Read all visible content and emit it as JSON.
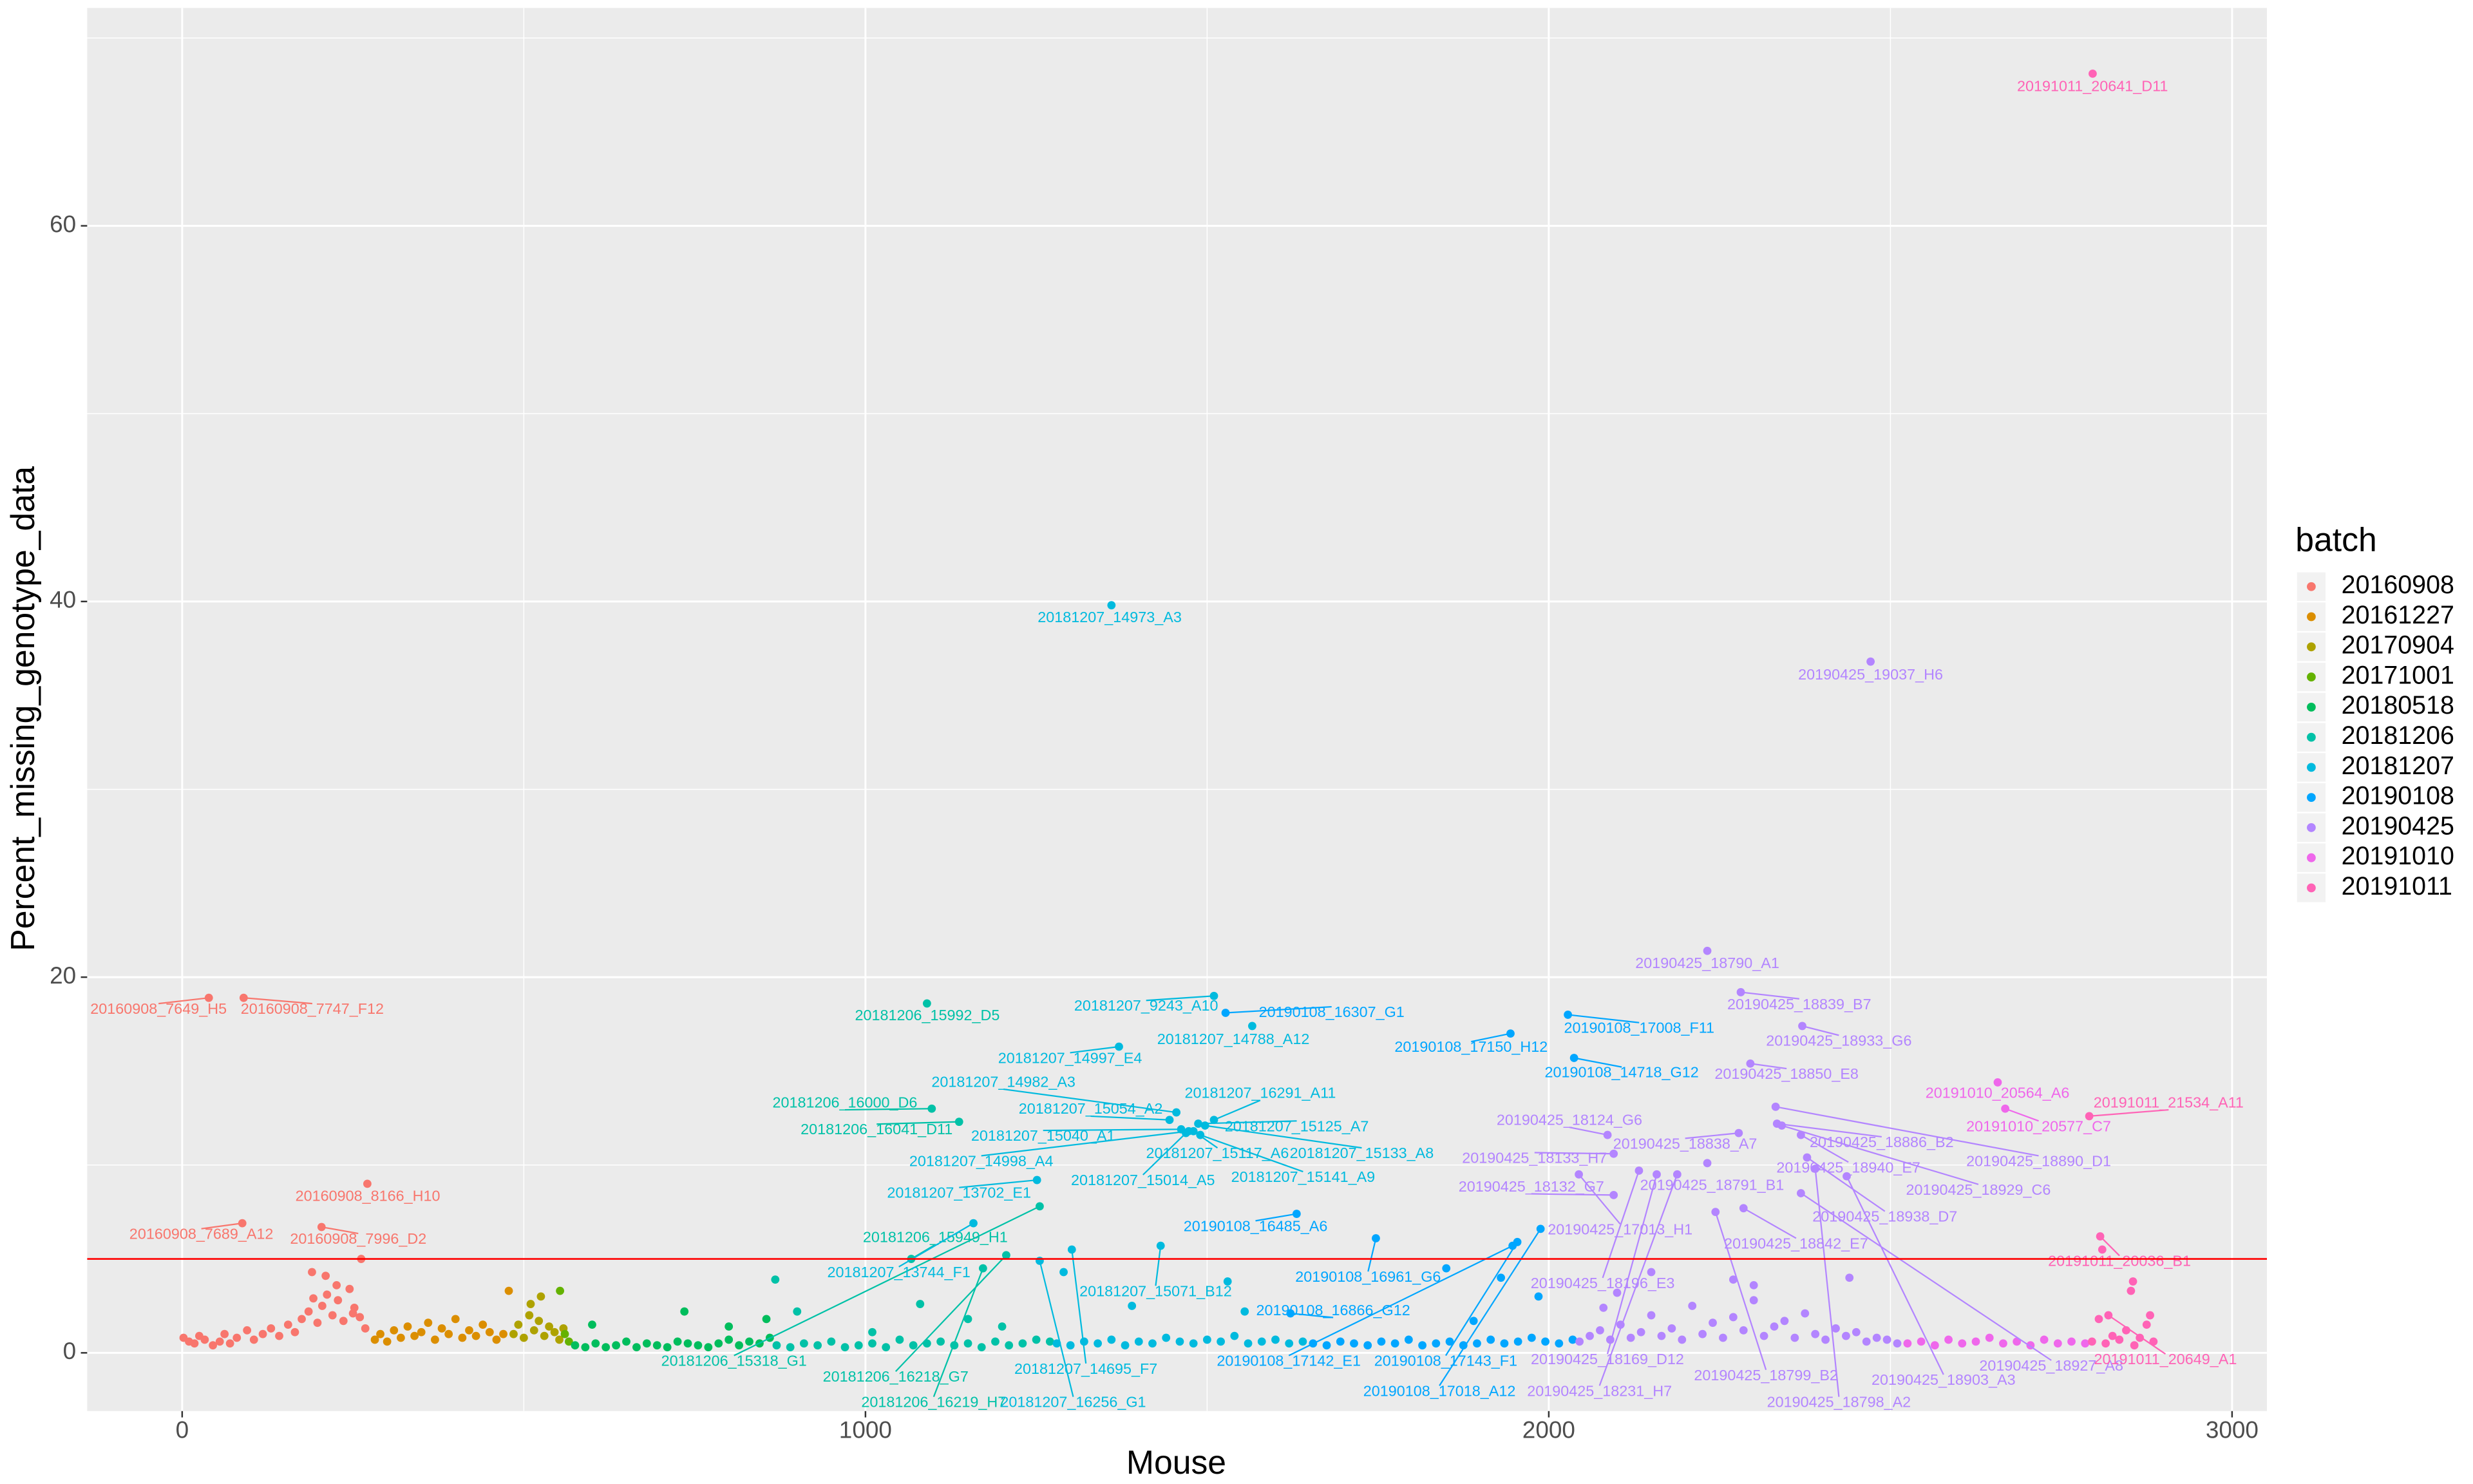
{
  "chart_data": {
    "type": "scatter",
    "x_label": "Mouse",
    "y_label": "Percent_missing_genotype_data",
    "legend_title": "batch",
    "xlim": [
      -139,
      3051
    ],
    "ylim": [
      -3.1,
      71.6
    ],
    "xticks": [
      0,
      1000,
      2000,
      3000
    ],
    "yticks": [
      0,
      20,
      40,
      60
    ],
    "x_minor_ticks": [
      500,
      1500,
      2500
    ],
    "y_minor_ticks": [
      10,
      30,
      50,
      70
    ],
    "grid": true,
    "legend_position": "right",
    "hline": 5,
    "hline_color": "#ff0000",
    "series": [
      {
        "name": "20160908",
        "color": "#F8766D",
        "x": [
          2,
          10,
          18,
          25,
          33,
          45,
          55,
          62,
          70,
          80,
          95,
          105,
          118,
          130,
          142,
          155,
          165,
          175,
          185,
          192,
          198,
          205,
          212,
          220,
          228,
          236,
          245,
          252,
          260,
          268,
          190,
          210,
          226,
          250,
          262
        ],
        "y": [
          0.8,
          0.6,
          0.5,
          0.9,
          0.7,
          0.4,
          0.6,
          1.0,
          0.5,
          0.8,
          1.2,
          0.7,
          1.0,
          1.3,
          0.9,
          1.5,
          1.1,
          1.8,
          2.2,
          2.9,
          1.6,
          2.5,
          3.1,
          2.0,
          2.8,
          1.7,
          3.4,
          2.4,
          1.9,
          1.3,
          4.3,
          4.1,
          3.6,
          2.1,
          5.0
        ],
        "labels": [
          {
            "text": "20160908_7649_H5",
            "x": 39,
            "y": 18.9
          },
          {
            "text": "20160908_7747_F12",
            "x": 90,
            "y": 18.9
          },
          {
            "text": "20160908_8166_H10",
            "x": 271,
            "y": 9.0
          },
          {
            "text": "20160908_7689_A12",
            "x": 88,
            "y": 6.9
          },
          {
            "text": "20160908_7996_D2",
            "x": 204,
            "y": 6.7
          }
        ]
      },
      {
        "name": "20161227",
        "color": "#DB8E00",
        "x": [
          282,
          290,
          300,
          310,
          320,
          330,
          340,
          350,
          360,
          370,
          380,
          390,
          400,
          410,
          420,
          430,
          440,
          450,
          460,
          470,
          478
        ],
        "y": [
          0.7,
          1.0,
          0.6,
          1.2,
          0.8,
          1.4,
          0.9,
          1.1,
          1.6,
          0.7,
          1.3,
          1.0,
          1.8,
          0.8,
          1.2,
          0.9,
          1.5,
          1.1,
          0.7,
          1.0,
          3.3
        ]
      },
      {
        "name": "20170904",
        "color": "#AEA200",
        "x": [
          485,
          492,
          500,
          508,
          515,
          522,
          530,
          537,
          545,
          552,
          558,
          510,
          525
        ],
        "y": [
          1.0,
          1.5,
          0.8,
          2.0,
          1.2,
          1.7,
          0.9,
          1.4,
          1.1,
          0.7,
          1.3,
          2.6,
          3.0
        ]
      },
      {
        "name": "20171001",
        "color": "#64B200",
        "x": [
          553,
          560,
          566
        ],
        "y": [
          3.3,
          1.0,
          0.6
        ]
      },
      {
        "name": "20180518",
        "color": "#00BD5C",
        "x": [
          575,
          590,
          605,
          620,
          635,
          650,
          665,
          680,
          695,
          710,
          725,
          740,
          755,
          770,
          785,
          800,
          815,
          830,
          845,
          860,
          600,
          735,
          800,
          855
        ],
        "y": [
          0.4,
          0.3,
          0.5,
          0.3,
          0.4,
          0.6,
          0.3,
          0.5,
          0.4,
          0.3,
          0.6,
          0.5,
          0.4,
          0.3,
          0.5,
          0.7,
          0.4,
          0.6,
          0.5,
          0.8,
          1.5,
          2.2,
          1.4,
          1.8
        ]
      },
      {
        "name": "20181206",
        "color": "#00C1A7",
        "x": [
          870,
          890,
          910,
          930,
          950,
          970,
          990,
          1010,
          1030,
          1050,
          1070,
          1090,
          1110,
          1130,
          1150,
          1170,
          1190,
          1210,
          1230,
          1250,
          1270,
          868,
          900,
          1010,
          1080,
          1150,
          1200
        ],
        "y": [
          0.4,
          0.3,
          0.5,
          0.4,
          0.6,
          0.3,
          0.4,
          0.5,
          0.3,
          0.7,
          0.4,
          0.5,
          0.6,
          0.4,
          0.5,
          0.3,
          0.6,
          0.4,
          0.5,
          0.7,
          0.6,
          3.9,
          2.2,
          1.1,
          2.6,
          1.8,
          1.4
        ],
        "labels": [
          {
            "text": "20181206_15992_D5",
            "x": 1090,
            "y": 18.6
          },
          {
            "text": "20181206_16000_D6",
            "x": 1097,
            "y": 13.0
          },
          {
            "text": "20181206_16041_D11",
            "x": 1137,
            "y": 12.3
          },
          {
            "text": "20181206_15949_H1",
            "x": 1067,
            "y": 5.0
          },
          {
            "text": "20181206_15318_G1",
            "x": 1255,
            "y": 7.8
          },
          {
            "text": "20181206_16218_G7",
            "x": 1206,
            "y": 5.2
          },
          {
            "text": "20181206_16219_H7",
            "x": 1172,
            "y": 4.5
          }
        ]
      },
      {
        "name": "20181207",
        "color": "#00BADE",
        "x": [
          1280,
          1300,
          1320,
          1340,
          1360,
          1380,
          1400,
          1420,
          1440,
          1460,
          1480,
          1500,
          1520,
          1540,
          1560,
          1580,
          1600,
          1620,
          1640,
          1290,
          1390,
          1530,
          1555
        ],
        "y": [
          0.5,
          0.4,
          0.6,
          0.5,
          0.7,
          0.4,
          0.6,
          0.5,
          0.8,
          0.6,
          0.5,
          0.7,
          0.6,
          0.9,
          0.5,
          0.6,
          0.7,
          0.5,
          0.6,
          4.3,
          2.5,
          3.8,
          2.2
        ],
        "labels": [
          {
            "text": "20181207_9243_A10",
            "x": 1510,
            "y": 19.0
          },
          {
            "text": "20181207_14788_A12",
            "x": 1566,
            "y": 17.4
          },
          {
            "text": "20181207_14997_E4",
            "x": 1371,
            "y": 16.3
          },
          {
            "text": "20181207_14973_A3",
            "x": 1360,
            "y": 39.8
          },
          {
            "text": "20181207_14982_A3",
            "x": 1455,
            "y": 12.8
          },
          {
            "text": "20181207_16291_A11",
            "x": 1510,
            "y": 12.4
          },
          {
            "text": "20181207_15054_A2",
            "x": 1445,
            "y": 12.4
          },
          {
            "text": "20181207_15125_A7",
            "x": 1487,
            "y": 12.2
          },
          {
            "text": "20181207_15040_A1",
            "x": 1462,
            "y": 11.9
          },
          {
            "text": "20181207_15133_A8",
            "x": 1497,
            "y": 12.1
          },
          {
            "text": "20181207_14998_A4",
            "x": 1473,
            "y": 11.8
          },
          {
            "text": "20181207_15117_A6",
            "x": 1480,
            "y": 11.8
          },
          {
            "text": "20181207_15014_A5",
            "x": 1469,
            "y": 11.7
          },
          {
            "text": "20181207_15141_A9",
            "x": 1490,
            "y": 11.6
          },
          {
            "text": "20181207_13702_E1",
            "x": 1251,
            "y": 9.2
          },
          {
            "text": "20181207_13744_F1",
            "x": 1158,
            "y": 6.9
          },
          {
            "text": "20181207_15071_B12",
            "x": 1432,
            "y": 5.7
          },
          {
            "text": "20181207_16256_G1",
            "x": 1255,
            "y": 4.9
          },
          {
            "text": "20181207_14695_F7",
            "x": 1302,
            "y": 5.5
          }
        ]
      },
      {
        "name": "20190108",
        "color": "#00A6FF",
        "x": [
          1655,
          1675,
          1695,
          1715,
          1735,
          1755,
          1775,
          1795,
          1815,
          1835,
          1855,
          1875,
          1895,
          1915,
          1935,
          1955,
          1975,
          1995,
          2015,
          2035,
          1850,
          1930,
          1985,
          1890
        ],
        "y": [
          0.5,
          0.4,
          0.6,
          0.5,
          0.4,
          0.6,
          0.5,
          0.7,
          0.4,
          0.5,
          0.6,
          0.4,
          0.5,
          0.7,
          0.5,
          0.6,
          0.8,
          0.6,
          0.5,
          0.7,
          4.5,
          4.0,
          3.0,
          1.7
        ],
        "labels": [
          {
            "text": "20190108_16307_G1",
            "x": 1527,
            "y": 18.1
          },
          {
            "text": "20190108_17150_H12",
            "x": 1944,
            "y": 17.0
          },
          {
            "text": "20190108_17008_F11",
            "x": 2028,
            "y": 18.0
          },
          {
            "text": "20190108_14718_G12",
            "x": 2037,
            "y": 15.7
          },
          {
            "text": "20190108_16485_A6",
            "x": 1631,
            "y": 7.4
          },
          {
            "text": "20190108_16961_G6",
            "x": 1747,
            "y": 6.1
          },
          {
            "text": "20190108_16866_G12",
            "x": 1622,
            "y": 2.1
          },
          {
            "text": "20190108_17142_E1",
            "x": 1947,
            "y": 5.7
          },
          {
            "text": "20190108_17143_F1",
            "x": 1954,
            "y": 5.9
          },
          {
            "text": "20190108_17018_A12",
            "x": 1988,
            "y": 6.6
          }
        ]
      },
      {
        "name": "20190425",
        "color": "#B385FF",
        "x": [
          2045,
          2060,
          2075,
          2090,
          2105,
          2120,
          2135,
          2150,
          2165,
          2180,
          2195,
          2210,
          2225,
          2240,
          2255,
          2270,
          2285,
          2300,
          2315,
          2330,
          2345,
          2360,
          2375,
          2390,
          2405,
          2420,
          2435,
          2450,
          2465,
          2480,
          2495,
          2510,
          2100,
          2150,
          2270,
          2300,
          2440,
          2080
        ],
        "y": [
          0.6,
          0.9,
          1.2,
          0.7,
          1.5,
          0.8,
          1.1,
          2.0,
          0.9,
          1.3,
          0.7,
          2.5,
          1.0,
          1.6,
          0.8,
          1.9,
          1.2,
          3.6,
          0.9,
          1.4,
          1.7,
          0.8,
          2.1,
          1.0,
          0.7,
          1.3,
          0.9,
          1.1,
          0.6,
          0.8,
          0.7,
          0.5,
          3.2,
          4.3,
          3.9,
          2.8,
          4.0,
          2.4
        ],
        "labels": [
          {
            "text": "20190425_19037_H6",
            "x": 2471,
            "y": 36.8
          },
          {
            "text": "20190425_18790_A1",
            "x": 2232,
            "y": 21.4
          },
          {
            "text": "20190425_18839_B7",
            "x": 2281,
            "y": 19.2
          },
          {
            "text": "20190425_18933_G6",
            "x": 2371,
            "y": 17.4
          },
          {
            "text": "20190425_18850_E8",
            "x": 2295,
            "y": 15.4
          },
          {
            "text": "20190425_18124_G6",
            "x": 2086,
            "y": 11.6
          },
          {
            "text": "20190425_18838_A7",
            "x": 2278,
            "y": 11.7
          },
          {
            "text": "20190425_18886_B2",
            "x": 2334,
            "y": 12.2
          },
          {
            "text": "20190425_18890_D1",
            "x": 2332,
            "y": 13.1
          },
          {
            "text": "20190425_18133_H7",
            "x": 2095,
            "y": 10.6
          },
          {
            "text": "20190425_18940_E7",
            "x": 2369,
            "y": 11.6
          },
          {
            "text": "20190425_18929_C6",
            "x": 2341,
            "y": 12.1
          },
          {
            "text": "20190425_18132_G7",
            "x": 2095,
            "y": 8.4
          },
          {
            "text": "20190425_18791_B1",
            "x": 2232,
            "y": 10.1
          },
          {
            "text": "20190425_18938_D7",
            "x": 2378,
            "y": 10.4
          },
          {
            "text": "20190425_17013_H1",
            "x": 2044,
            "y": 9.5
          },
          {
            "text": "20190425_18842_E7",
            "x": 2285,
            "y": 7.7
          },
          {
            "text": "20190425_18196_E3",
            "x": 2132,
            "y": 9.7
          },
          {
            "text": "20190425_18169_D12",
            "x": 2158,
            "y": 9.5
          },
          {
            "text": "20190425_18231_H7",
            "x": 2188,
            "y": 9.5
          },
          {
            "text": "20190425_18799_B2",
            "x": 2244,
            "y": 7.5
          },
          {
            "text": "20190425_18798_A2",
            "x": 2390,
            "y": 9.8
          },
          {
            "text": "20190425_18903_A3",
            "x": 2436,
            "y": 9.4
          },
          {
            "text": "20190425_18927_A8",
            "x": 2369,
            "y": 8.5
          }
        ]
      },
      {
        "name": "20191010",
        "color": "#EF67EB",
        "x": [
          2525,
          2545,
          2565,
          2585,
          2605,
          2625,
          2645,
          2665,
          2685,
          2705,
          2725,
          2745,
          2765,
          2785
        ],
        "y": [
          0.5,
          0.6,
          0.4,
          0.7,
          0.5,
          0.6,
          0.8,
          0.5,
          0.6,
          0.4,
          0.7,
          0.5,
          0.6,
          0.5
        ],
        "labels": [
          {
            "text": "20191010_20564_A6",
            "x": 2657,
            "y": 14.4
          },
          {
            "text": "20191010_20577_C7",
            "x": 2668,
            "y": 13.0
          }
        ]
      },
      {
        "name": "20191011",
        "color": "#FF63B6",
        "x": [
          2795,
          2805,
          2815,
          2825,
          2835,
          2845,
          2855,
          2865,
          2875,
          2885,
          2852,
          2857,
          2880,
          2810
        ],
        "y": [
          0.6,
          1.8,
          0.5,
          0.9,
          0.7,
          1.2,
          3.8,
          0.8,
          1.5,
          0.6,
          3.3,
          0.4,
          2.0,
          5.5
        ],
        "labels": [
          {
            "text": "20191011_20641_D11",
            "x": 2796,
            "y": 68.1
          },
          {
            "text": "20191011_21534_A11",
            "x": 2791,
            "y": 12.6
          },
          {
            "text": "20191011_20036_B1",
            "x": 2807,
            "y": 6.2
          },
          {
            "text": "20191011_20649_A1",
            "x": 2819,
            "y": 2.0
          }
        ]
      }
    ]
  }
}
